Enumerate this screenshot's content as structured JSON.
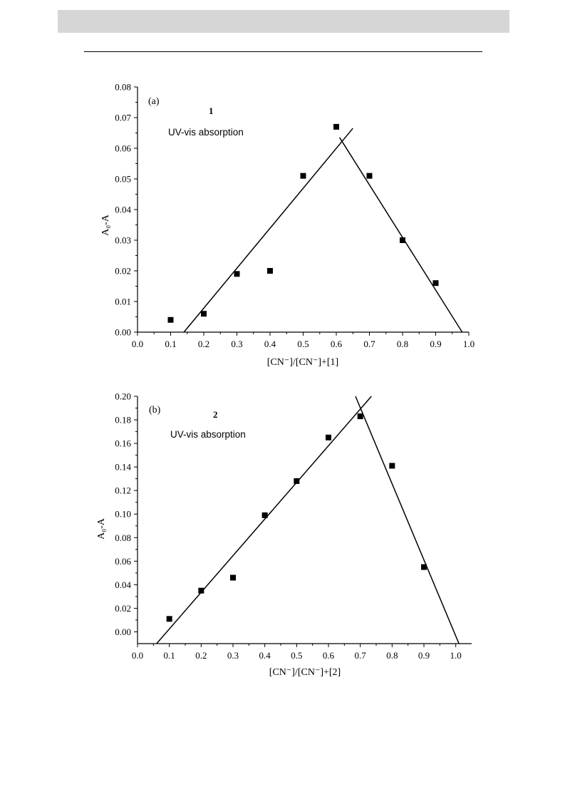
{
  "chart_data": [
    {
      "type": "scatter",
      "panel_label": "(a)",
      "compound_label": "1",
      "annotation": "UV-vis absorption",
      "xlabel": "[CN⁻]/[CN⁻]+[1]",
      "ylabel": "A₀-A",
      "xlim": [
        0.0,
        1.0
      ],
      "ylim": [
        0.0,
        0.08
      ],
      "x_ticks": [
        "0.0",
        "0.1",
        "0.2",
        "0.3",
        "0.4",
        "0.5",
        "0.6",
        "0.7",
        "0.8",
        "0.9",
        "1.0"
      ],
      "y_ticks": [
        "0.00",
        "0.01",
        "0.02",
        "0.03",
        "0.04",
        "0.05",
        "0.06",
        "0.07",
        "0.08"
      ],
      "points": {
        "x": [
          0.1,
          0.2,
          0.3,
          0.4,
          0.5,
          0.6,
          0.7,
          0.8,
          0.9
        ],
        "y": [
          0.004,
          0.006,
          0.019,
          0.02,
          0.051,
          0.067,
          0.051,
          0.03,
          0.016
        ]
      },
      "fit_lines": [
        {
          "x": [
            0.14,
            0.65
          ],
          "y": [
            0.0,
            0.0665
          ]
        },
        {
          "x": [
            0.61,
            0.98
          ],
          "y": [
            0.0635,
            0.0
          ]
        }
      ],
      "grid": false
    },
    {
      "type": "scatter",
      "panel_label": "(b)",
      "compound_label": "2",
      "annotation": "UV-vis absorption",
      "xlabel": "[CN⁻]/[CN⁻]+[2]",
      "ylabel": "A₀-A",
      "xlim": [
        0.0,
        1.05
      ],
      "ylim": [
        -0.01,
        0.2
      ],
      "x_ticks": [
        "0.0",
        "0.1",
        "0.2",
        "0.3",
        "0.4",
        "0.5",
        "0.6",
        "0.7",
        "0.8",
        "0.9",
        "1.0"
      ],
      "y_ticks": [
        "0.00",
        "0.02",
        "0.04",
        "0.06",
        "0.08",
        "0.10",
        "0.12",
        "0.14",
        "0.16",
        "0.18",
        "0.20"
      ],
      "points": {
        "x": [
          0.1,
          0.2,
          0.3,
          0.4,
          0.5,
          0.6,
          0.7,
          0.8,
          0.9
        ],
        "y": [
          0.011,
          0.035,
          0.046,
          0.099,
          0.128,
          0.165,
          0.183,
          0.141,
          0.055
        ]
      },
      "fit_lines": [
        {
          "x": [
            0.06,
            0.735
          ],
          "y": [
            -0.01,
            0.2
          ]
        },
        {
          "x": [
            0.685,
            1.01
          ],
          "y": [
            0.2,
            -0.01
          ]
        }
      ],
      "grid": false
    }
  ]
}
